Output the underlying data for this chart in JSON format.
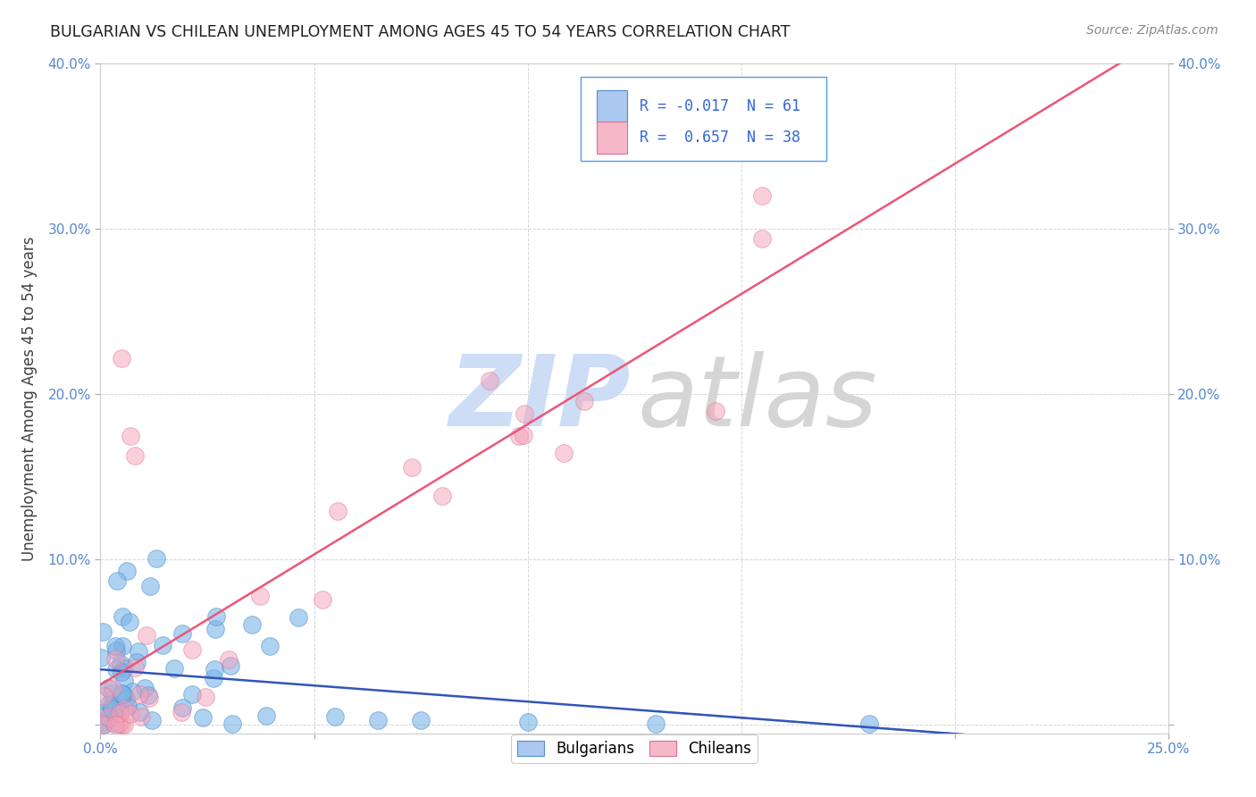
{
  "title": "BULGARIAN VS CHILEAN UNEMPLOYMENT AMONG AGES 45 TO 54 YEARS CORRELATION CHART",
  "source": "Source: ZipAtlas.com",
  "ylabel": "Unemployment Among Ages 45 to 54 years",
  "xlim": [
    0.0,
    0.25
  ],
  "ylim": [
    -0.005,
    0.4
  ],
  "xticks": [
    0.0,
    0.05,
    0.1,
    0.15,
    0.2,
    0.25
  ],
  "yticks": [
    0.0,
    0.1,
    0.2,
    0.3,
    0.4
  ],
  "ytick_labels": [
    "",
    "10.0%",
    "20.0%",
    "30.0%",
    "40.0%"
  ],
  "xtick_labels": [
    "0.0%",
    "",
    "",
    "",
    "",
    "25.0%"
  ],
  "bg_color": "#ffffff",
  "grid_color": "#cccccc",
  "blue_scatter_color": "#7ab4e8",
  "pink_scatter_color": "#f5a0b8",
  "blue_edge_color": "#5090d0",
  "pink_edge_color": "#e07090",
  "blue_line_color": "#3355bb",
  "pink_line_color": "#ee5577",
  "legend_box_color": "#5599ee",
  "legend_text_color": "#3366dd",
  "blue_legend_fill": "#aac8f0",
  "pink_legend_fill": "#f5b8c8",
  "watermark_zip_color": "#ccddf5",
  "watermark_atlas_color": "#d5d5d5",
  "tick_label_color": "#5588cc",
  "ylabel_color": "#404040",
  "title_color": "#202020",
  "source_color": "#888888"
}
